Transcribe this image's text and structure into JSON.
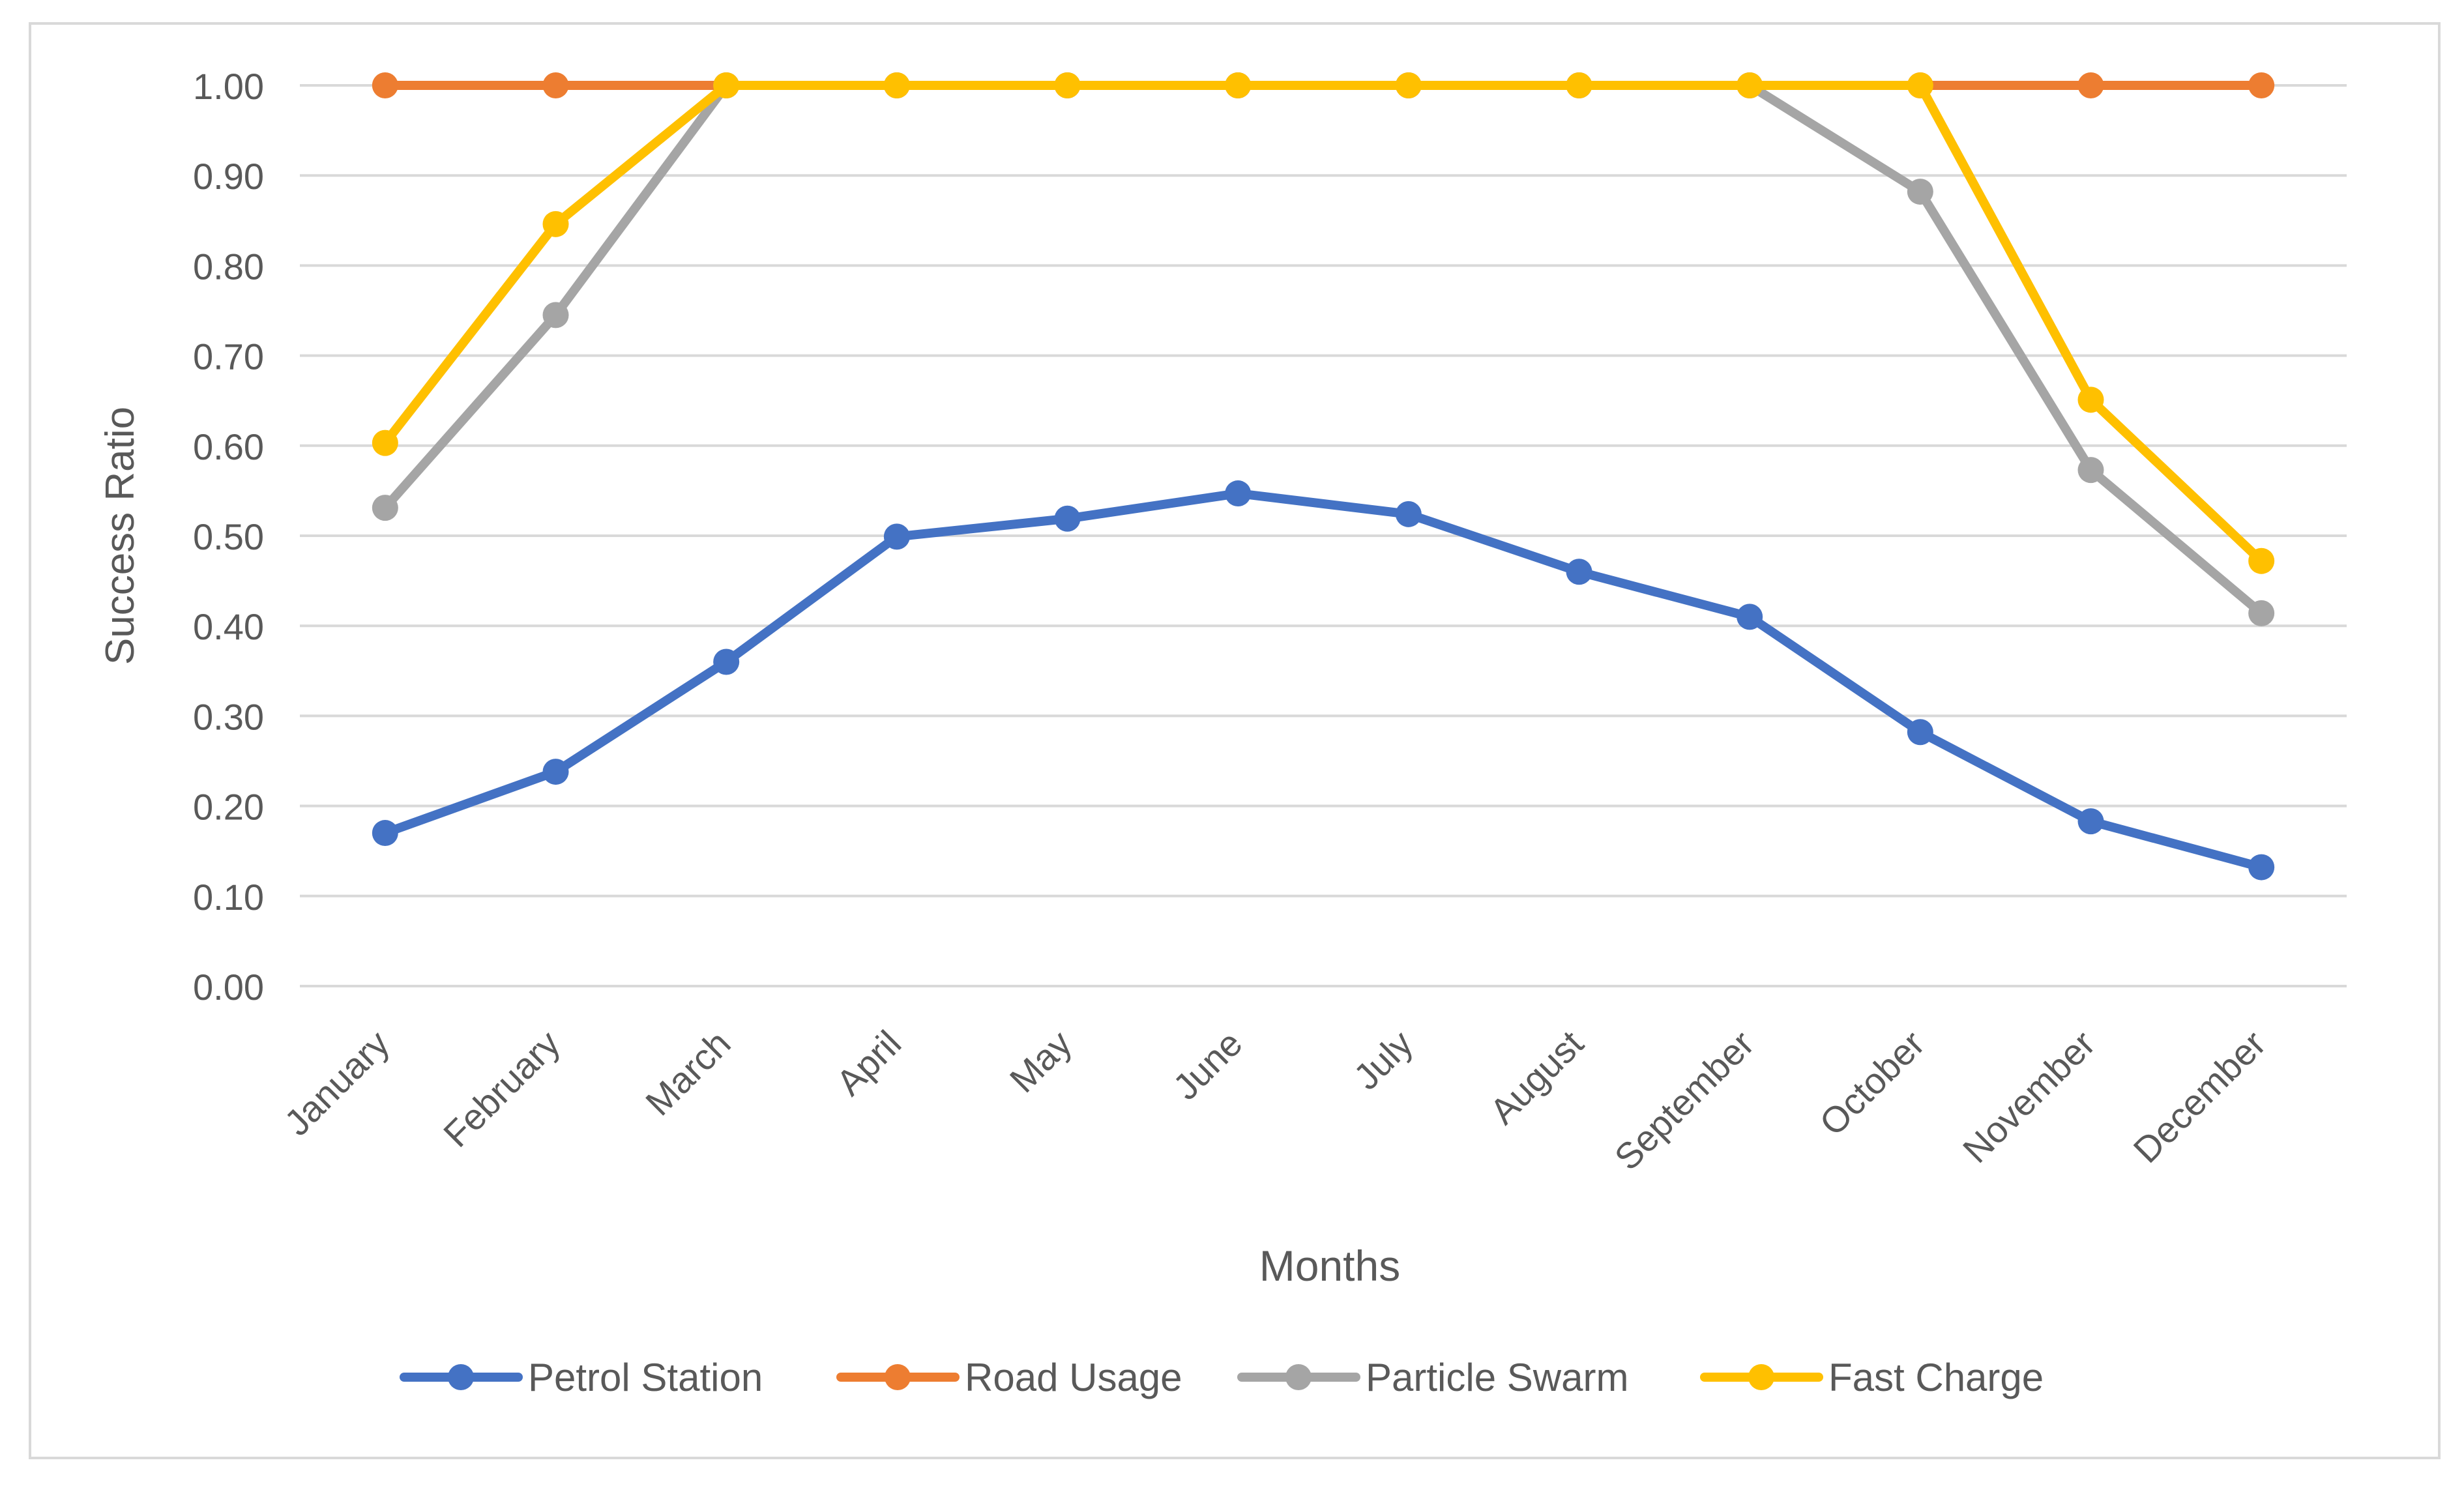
{
  "chart_data": {
    "type": "line",
    "title": "",
    "xlabel": "Months",
    "ylabel": "Success Ratio",
    "categories": [
      "January",
      "February",
      "March",
      "April",
      "May",
      "June",
      "July",
      "August",
      "September",
      "October",
      "November",
      "December"
    ],
    "ylim": [
      0,
      1
    ],
    "ytick_step": 0.1,
    "ytick_labels": [
      "0.00",
      "0.10",
      "0.20",
      "0.30",
      "0.40",
      "0.50",
      "0.60",
      "0.70",
      "0.80",
      "0.90",
      "1.00"
    ],
    "grid": true,
    "legend_position": "bottom",
    "series": [
      {
        "name": "Petrol Station",
        "color": "#4472C4",
        "values": [
          0.17,
          0.238,
          0.36,
          0.499,
          0.519,
          0.547,
          0.524,
          0.46,
          0.41,
          0.282,
          0.183,
          0.132
        ]
      },
      {
        "name": "Road Usage",
        "color": "#ED7D31",
        "values": [
          1.0,
          1.0,
          1.0,
          1.0,
          1.0,
          1.0,
          1.0,
          1.0,
          1.0,
          1.0,
          1.0,
          1.0
        ]
      },
      {
        "name": "Particle Swarm",
        "color": "#A5A5A5",
        "values": [
          0.531,
          0.745,
          1.0,
          1.0,
          1.0,
          1.0,
          1.0,
          1.0,
          1.0,
          0.882,
          0.573,
          0.414
        ]
      },
      {
        "name": "Fast Charge",
        "color": "#FFC000",
        "values": [
          0.603,
          0.846,
          1.0,
          1.0,
          1.0,
          1.0,
          1.0,
          1.0,
          1.0,
          1.0,
          0.651,
          0.472
        ]
      }
    ]
  }
}
